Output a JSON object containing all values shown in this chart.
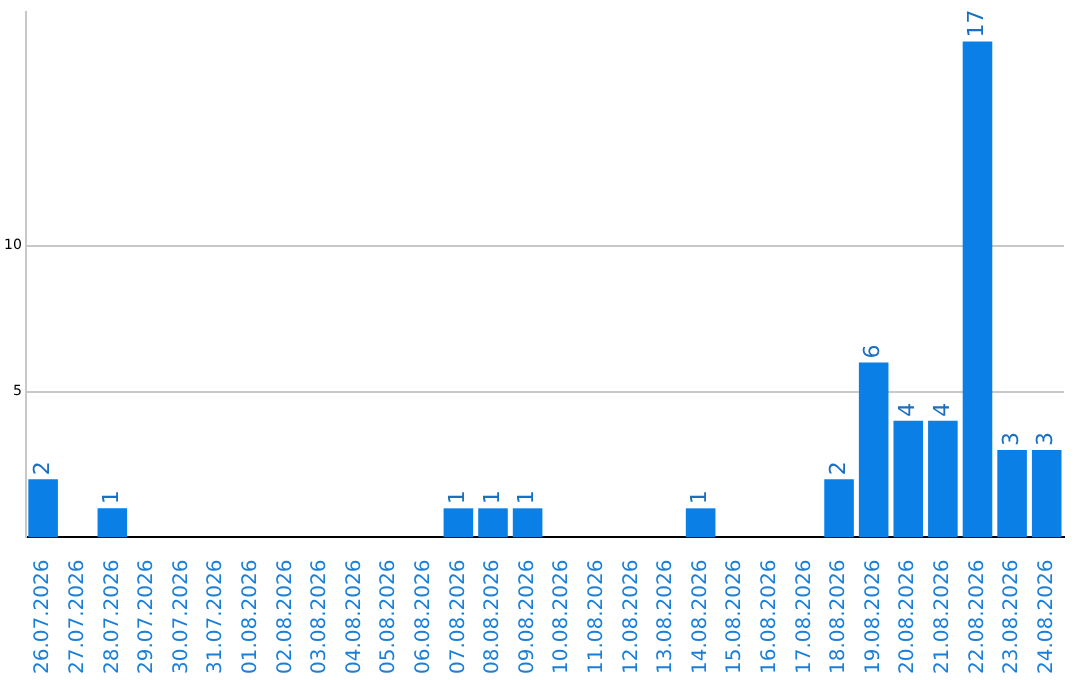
{
  "chart_data": {
    "type": "bar",
    "categories": [
      "26.07.2026",
      "27.07.2026",
      "28.07.2026",
      "29.07.2026",
      "30.07.2026",
      "31.07.2026",
      "01.08.2026",
      "02.08.2026",
      "03.08.2026",
      "04.08.2026",
      "05.08.2026",
      "06.08.2026",
      "07.08.2026",
      "08.08.2026",
      "09.08.2026",
      "10.08.2026",
      "11.08.2026",
      "12.08.2026",
      "13.08.2026",
      "14.08.2026",
      "15.08.2026",
      "16.08.2026",
      "17.08.2026",
      "18.08.2026",
      "19.08.2026",
      "20.08.2026",
      "21.08.2026",
      "22.08.2026",
      "23.08.2026",
      "24.08.2026"
    ],
    "values": [
      2,
      null,
      1,
      null,
      null,
      null,
      null,
      null,
      null,
      null,
      null,
      null,
      1,
      1,
      1,
      null,
      null,
      null,
      null,
      1,
      null,
      null,
      null,
      2,
      6,
      4,
      4,
      17,
      3,
      3
    ],
    "color": "#0a7fe6",
    "ylim": [
      0,
      18
    ],
    "yticks": [
      5,
      10
    ],
    "grid": "y",
    "legend": false,
    "data_labels": true
  }
}
